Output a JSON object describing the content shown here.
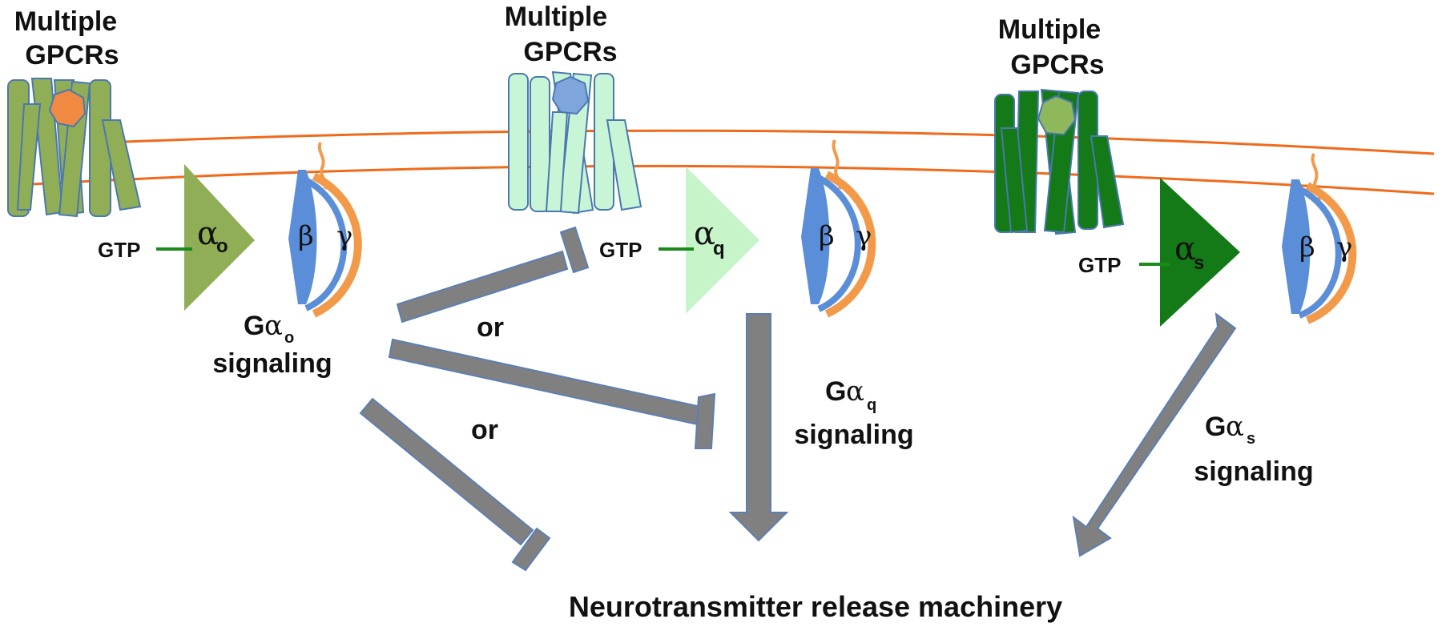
{
  "gpcr_label": {
    "line1": "Multiple",
    "line2": "GPCRs"
  },
  "gtp_label": "GTP",
  "beta_symbol": "β",
  "gamma_symbol": "γ",
  "alpha_symbol": "α",
  "g_symbol": "G",
  "signaling_word": "signaling",
  "or_label": "or",
  "bottom_label": "Neurotransmitter release machinery",
  "pathways": [
    {
      "subscript": "o",
      "alpha_color": "#8fae56",
      "receptor_color": "#8fae56",
      "ligand_color": "#f08a42"
    },
    {
      "subscript": "q",
      "alpha_color": "#c7f5c9",
      "receptor_color": "#c7f5d6",
      "ligand_color": "#7fa6dc"
    },
    {
      "subscript": "s",
      "alpha_color": "#137a17",
      "receptor_color": "#137a17",
      "ligand_color": "#8fb85a"
    }
  ],
  "colors": {
    "membrane": "#f06a1a",
    "arrow_fill": "#808080",
    "arrow_stroke": "#5a7fb5",
    "beta": "#5b8ed8",
    "gamma": "#f29a4a",
    "gtp_line": "#1a8a1a"
  }
}
